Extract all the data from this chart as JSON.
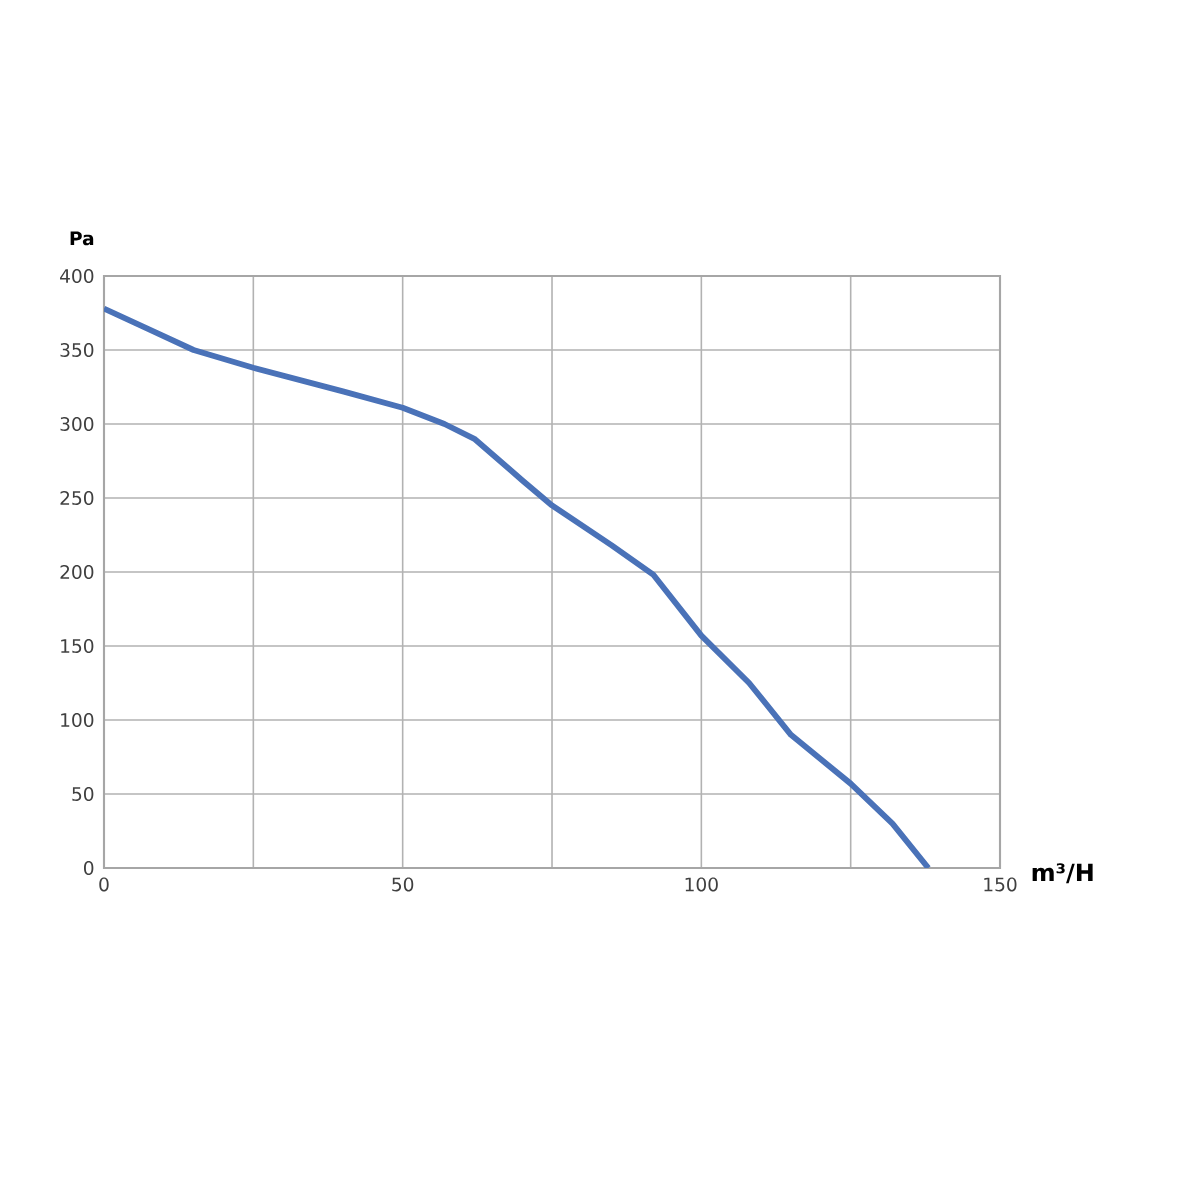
{
  "chart_data": {
    "type": "line",
    "xlabel": "m³/H",
    "ylabel": "Pa",
    "x": [
      0,
      7,
      15,
      25,
      40,
      50,
      57,
      62,
      70,
      75,
      85,
      92,
      100,
      108,
      115,
      125,
      132,
      138
    ],
    "series": [
      {
        "color": "#4a72b8",
        "values": [
          378,
          365,
          350,
          338,
          322,
          311,
          300,
          290,
          262,
          245,
          218,
          198,
          157,
          125,
          90,
          57,
          30,
          0
        ]
      }
    ],
    "xlim": [
      0,
      150
    ],
    "ylim": [
      0,
      400
    ],
    "xticks": [
      0,
      {
        "value": 25,
        "label": null
      },
      50,
      {
        "value": 75,
        "label": null
      },
      100,
      {
        "value": 125,
        "label": null
      },
      150
    ],
    "yticks": [
      0,
      50,
      100,
      150,
      200,
      250,
      300,
      350,
      400
    ],
    "grid": true,
    "marker": "none",
    "line_style": "solid"
  }
}
